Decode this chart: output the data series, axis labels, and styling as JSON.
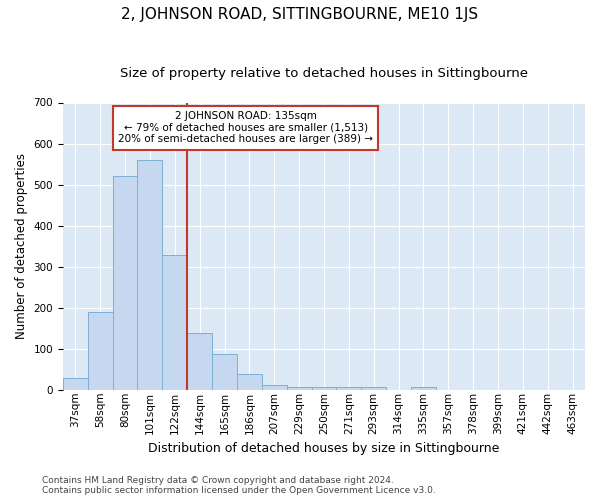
{
  "title": "2, JOHNSON ROAD, SITTINGBOURNE, ME10 1JS",
  "subtitle": "Size of property relative to detached houses in Sittingbourne",
  "xlabel": "Distribution of detached houses by size in Sittingbourne",
  "ylabel": "Number of detached properties",
  "footer_line1": "Contains HM Land Registry data © Crown copyright and database right 2024.",
  "footer_line2": "Contains public sector information licensed under the Open Government Licence v3.0.",
  "categories": [
    "37sqm",
    "58sqm",
    "80sqm",
    "101sqm",
    "122sqm",
    "144sqm",
    "165sqm",
    "186sqm",
    "207sqm",
    "229sqm",
    "250sqm",
    "271sqm",
    "293sqm",
    "314sqm",
    "335sqm",
    "357sqm",
    "378sqm",
    "399sqm",
    "421sqm",
    "442sqm",
    "463sqm"
  ],
  "values": [
    30,
    190,
    520,
    560,
    330,
    140,
    87,
    40,
    13,
    8,
    8,
    8,
    8,
    0,
    8,
    0,
    0,
    0,
    0,
    0,
    0
  ],
  "bar_color": "#c5d8f0",
  "bar_edge_color": "#7bafd4",
  "vline_color": "#c0392b",
  "vline_pos": 4.5,
  "annotation_text": "2 JOHNSON ROAD: 135sqm\n← 79% of detached houses are smaller (1,513)\n20% of semi-detached houses are larger (389) →",
  "annotation_box_facecolor": "#ffffff",
  "annotation_box_edgecolor": "#c0392b",
  "ylim": [
    0,
    700
  ],
  "yticks": [
    0,
    100,
    200,
    300,
    400,
    500,
    600,
    700
  ],
  "fig_bg_color": "#ffffff",
  "plot_bg_color": "#dce9f5",
  "grid_color": "#ffffff",
  "title_fontsize": 11,
  "subtitle_fontsize": 9.5,
  "xlabel_fontsize": 9,
  "ylabel_fontsize": 8.5,
  "tick_fontsize": 7.5,
  "footer_fontsize": 6.5
}
